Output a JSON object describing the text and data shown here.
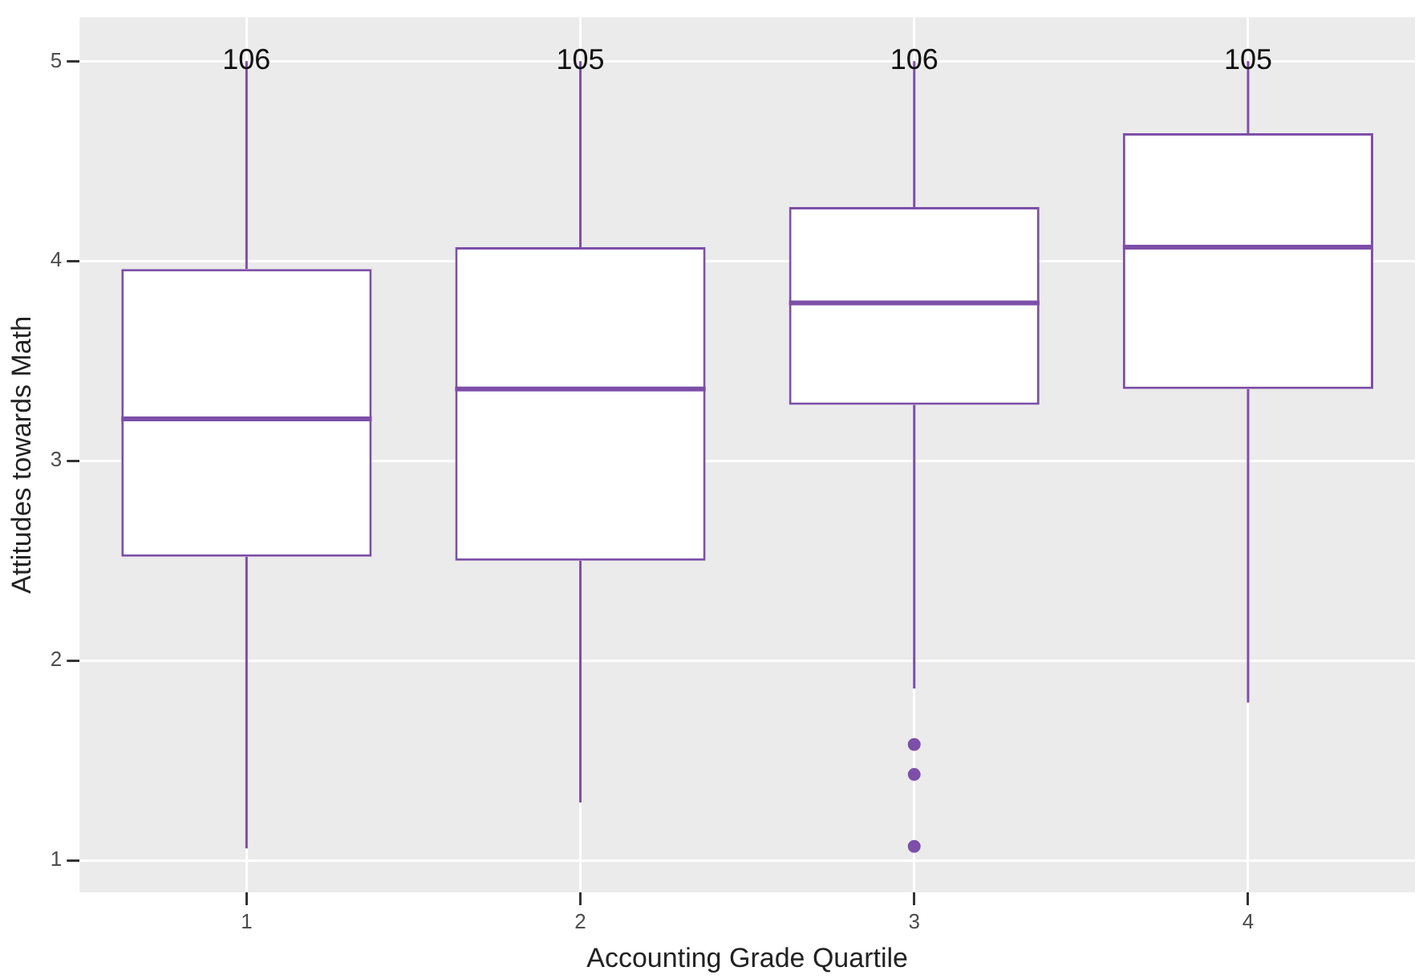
{
  "chart_data": {
    "type": "box",
    "xlabel": "Accounting Grade Quartile",
    "ylabel": "Attitudes towards Math",
    "categories": [
      "1",
      "2",
      "3",
      "4"
    ],
    "series": [
      {
        "color": "#7d4fa8",
        "boxes": [
          {
            "low": 1.06,
            "q1": 2.52,
            "median": 3.21,
            "q3": 3.96,
            "high": 5
          },
          {
            "low": 1.29,
            "q1": 2.5,
            "median": 3.36,
            "q3": 4.07,
            "high": 5
          },
          {
            "low": 1.86,
            "q1": 3.28,
            "median": 3.79,
            "q3": 4.27,
            "high": 5,
            "outliers": [
              1.58,
              1.43,
              1.07
            ]
          },
          {
            "low": 1.79,
            "q1": 3.36,
            "median": 4.07,
            "q3": 4.64,
            "high": 5
          }
        ]
      }
    ],
    "ylim": [
      0.84,
      5.22
    ],
    "yticks": [
      1,
      2,
      3,
      4,
      5
    ],
    "grid": true,
    "legend": false,
    "marker": "circle",
    "annotations": [
      {
        "text": "106",
        "x": "1",
        "y": 5
      },
      {
        "text": "105",
        "x": "2",
        "y": 5
      },
      {
        "text": "106",
        "x": "3",
        "y": 5
      },
      {
        "text": "105",
        "x": "4",
        "y": 5
      }
    ]
  }
}
